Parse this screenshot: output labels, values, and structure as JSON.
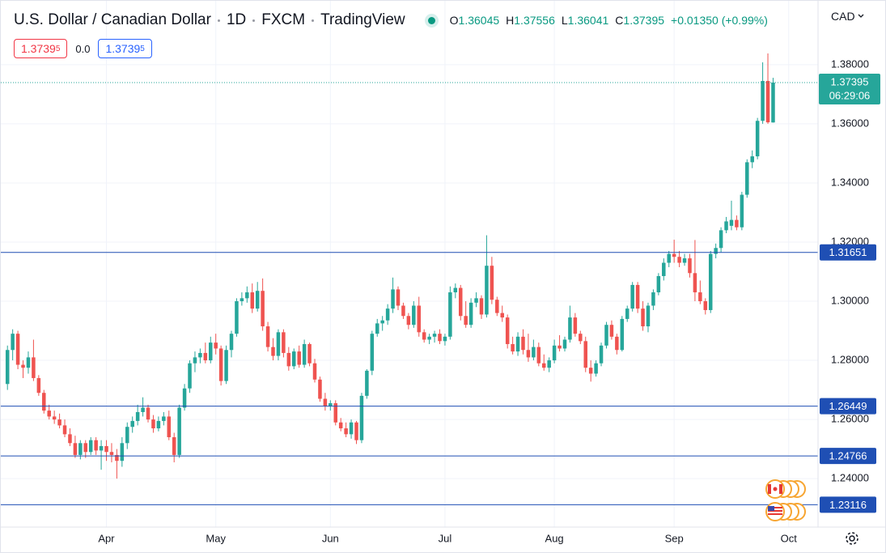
{
  "header": {
    "symbol": "U.S. Dollar / Canadian Dollar",
    "interval": "1D",
    "exchange": "FXCM",
    "source": "TradingView",
    "ohlc_keys": [
      "O",
      "H",
      "L",
      "C"
    ],
    "change": "+0.01350 (+0.99%)",
    "sell": {
      "price": "1.3739",
      "pip": "5"
    },
    "spread": "0.0",
    "buy": {
      "price": "1.3739",
      "pip": "5"
    },
    "currency": "CAD"
  },
  "chart_data": {
    "type": "candlestick",
    "up_color": "#26a69a",
    "down_color": "#ef5350",
    "grid": true,
    "ylim": [
      1.2236,
      1.4016
    ],
    "yticks": [
      {
        "value": 1.24,
        "label": "1.24000"
      },
      {
        "value": 1.26,
        "label": "1.26000"
      },
      {
        "value": 1.28,
        "label": "1.28000"
      },
      {
        "value": 1.3,
        "label": "1.30000"
      },
      {
        "value": 1.32,
        "label": "1.32000"
      },
      {
        "value": 1.34,
        "label": "1.34000"
      },
      {
        "value": 1.36,
        "label": "1.36000"
      },
      {
        "value": 1.38,
        "label": "1.38000"
      }
    ],
    "hlines": [
      1.31651,
      1.26449,
      1.24766,
      1.23116
    ],
    "hline_color": "#1f4fb4",
    "last_price": 1.37395,
    "countdown": "06:29:06",
    "categories": [
      null,
      null,
      null,
      null,
      null,
      null,
      null,
      null,
      null,
      null,
      null,
      null,
      null,
      null,
      null,
      null,
      null,
      null,
      null,
      "Apr",
      null,
      null,
      null,
      null,
      null,
      null,
      null,
      null,
      null,
      null,
      null,
      null,
      null,
      null,
      null,
      null,
      null,
      null,
      null,
      null,
      "May",
      null,
      null,
      null,
      null,
      null,
      null,
      null,
      null,
      null,
      null,
      null,
      null,
      null,
      null,
      null,
      null,
      null,
      null,
      null,
      null,
      null,
      "Jun",
      null,
      null,
      null,
      null,
      null,
      null,
      null,
      null,
      null,
      null,
      null,
      null,
      null,
      null,
      null,
      null,
      null,
      null,
      null,
      null,
      null,
      "Jul",
      null,
      null,
      null,
      null,
      null,
      null,
      null,
      null,
      null,
      null,
      null,
      null,
      null,
      null,
      null,
      null,
      null,
      null,
      null,
      null,
      "Aug",
      null,
      null,
      null,
      null,
      null,
      null,
      null,
      null,
      null,
      null,
      null,
      null,
      null,
      null,
      null,
      null,
      null,
      null,
      null,
      null,
      null,
      null,
      "Sep",
      null,
      null,
      null,
      null,
      null,
      null,
      null,
      null,
      null,
      null,
      null,
      null,
      null,
      null,
      null,
      null,
      null,
      null,
      null,
      null,
      null,
      "Oct"
    ],
    "ohlc": [
      [
        1.272,
        1.285,
        1.27,
        1.2835
      ],
      [
        1.2835,
        1.2905,
        1.28,
        1.289
      ],
      [
        1.289,
        1.29,
        1.277,
        1.2785
      ],
      [
        1.2785,
        1.28,
        1.274,
        1.2775
      ],
      [
        1.2775,
        1.283,
        1.2755,
        1.281
      ],
      [
        1.281,
        1.287,
        1.273,
        1.274
      ],
      [
        1.274,
        1.275,
        1.268,
        1.269
      ],
      [
        1.269,
        1.27,
        1.262,
        1.263
      ],
      [
        1.263,
        1.265,
        1.26,
        1.261
      ],
      [
        1.261,
        1.263,
        1.2585,
        1.26
      ],
      [
        1.26,
        1.262,
        1.257,
        1.258
      ],
      [
        1.258,
        1.26,
        1.254,
        1.255
      ],
      [
        1.255,
        1.257,
        1.251,
        1.252
      ],
      [
        1.252,
        1.2545,
        1.247,
        1.248
      ],
      [
        1.248,
        1.253,
        1.2465,
        1.252
      ],
      [
        1.252,
        1.253,
        1.247,
        1.249
      ],
      [
        1.249,
        1.254,
        1.248,
        1.253
      ],
      [
        1.253,
        1.254,
        1.248,
        1.2495
      ],
      [
        1.2495,
        1.253,
        1.243,
        1.251
      ],
      [
        1.251,
        1.253,
        1.246,
        1.249
      ],
      [
        1.249,
        1.252,
        1.2455,
        1.248
      ],
      [
        1.248,
        1.25,
        1.24,
        1.246
      ],
      [
        1.246,
        1.254,
        1.244,
        1.252
      ],
      [
        1.252,
        1.259,
        1.25,
        1.2575
      ],
      [
        1.2575,
        1.261,
        1.2555,
        1.2595
      ],
      [
        1.2595,
        1.265,
        1.258,
        1.2625
      ],
      [
        1.2625,
        1.2675,
        1.261,
        1.264
      ],
      [
        1.264,
        1.265,
        1.259,
        1.26
      ],
      [
        1.26,
        1.2615,
        1.2555,
        1.257
      ],
      [
        1.257,
        1.261,
        1.256,
        1.2595
      ],
      [
        1.2595,
        1.2625,
        1.258,
        1.261
      ],
      [
        1.261,
        1.263,
        1.253,
        1.254
      ],
      [
        1.254,
        1.2555,
        1.2455,
        1.248
      ],
      [
        1.248,
        1.265,
        1.247,
        1.264
      ],
      [
        1.264,
        1.272,
        1.263,
        1.2705
      ],
      [
        1.2705,
        1.28,
        1.269,
        1.279
      ],
      [
        1.279,
        1.283,
        1.276,
        1.281
      ],
      [
        1.281,
        1.284,
        1.279,
        1.2825
      ],
      [
        1.2825,
        1.286,
        1.279,
        1.28
      ],
      [
        1.28,
        1.288,
        1.279,
        1.286
      ],
      [
        1.286,
        1.289,
        1.282,
        1.284
      ],
      [
        1.284,
        1.285,
        1.2715,
        1.273
      ],
      [
        1.273,
        1.285,
        1.272,
        1.2835
      ],
      [
        1.2835,
        1.29,
        1.281,
        1.289
      ],
      [
        1.289,
        1.301,
        1.288,
        1.3
      ],
      [
        1.3,
        1.303,
        1.2985,
        1.301
      ],
      [
        1.301,
        1.305,
        1.2995,
        1.303
      ],
      [
        1.303,
        1.306,
        1.296,
        1.2975
      ],
      [
        1.2975,
        1.3065,
        1.2965,
        1.3035
      ],
      [
        1.3035,
        1.3077,
        1.29,
        1.2915
      ],
      [
        1.2915,
        1.293,
        1.283,
        1.2845
      ],
      [
        1.2845,
        1.2875,
        1.28,
        1.2815
      ],
      [
        1.2815,
        1.2905,
        1.28,
        1.2895
      ],
      [
        1.2895,
        1.2905,
        1.281,
        1.2825
      ],
      [
        1.2825,
        1.2845,
        1.2765,
        1.278
      ],
      [
        1.278,
        1.284,
        1.277,
        1.283
      ],
      [
        1.283,
        1.285,
        1.2775,
        1.2785
      ],
      [
        1.2785,
        1.287,
        1.2775,
        1.2855
      ],
      [
        1.2855,
        1.286,
        1.278,
        1.279
      ],
      [
        1.279,
        1.2805,
        1.2725,
        1.2735
      ],
      [
        1.2735,
        1.2745,
        1.266,
        1.267
      ],
      [
        1.267,
        1.269,
        1.263,
        1.2645
      ],
      [
        1.2645,
        1.2665,
        1.263,
        1.2655
      ],
      [
        1.2655,
        1.2665,
        1.258,
        1.259
      ],
      [
        1.259,
        1.2605,
        1.256,
        1.257
      ],
      [
        1.257,
        1.259,
        1.254,
        1.255
      ],
      [
        1.255,
        1.26,
        1.2535,
        1.259
      ],
      [
        1.259,
        1.2595,
        1.2517,
        1.253
      ],
      [
        1.253,
        1.269,
        1.252,
        1.268
      ],
      [
        1.268,
        1.277,
        1.267,
        1.2765
      ],
      [
        1.2765,
        1.29,
        1.275,
        1.289
      ],
      [
        1.289,
        1.294,
        1.288,
        1.2925
      ],
      [
        1.2925,
        1.295,
        1.29,
        1.2935
      ],
      [
        1.2935,
        1.299,
        1.292,
        1.2975
      ],
      [
        1.2975,
        1.308,
        1.296,
        1.304
      ],
      [
        1.304,
        1.305,
        1.297,
        1.2985
      ],
      [
        1.2985,
        1.2995,
        1.294,
        1.295
      ],
      [
        1.295,
        1.296,
        1.2905,
        1.292
      ],
      [
        1.292,
        1.3,
        1.291,
        1.2985
      ],
      [
        1.2985,
        1.3015,
        1.288,
        1.2895
      ],
      [
        1.2895,
        1.2905,
        1.286,
        1.287
      ],
      [
        1.287,
        1.289,
        1.2855,
        1.288
      ],
      [
        1.288,
        1.29,
        1.286,
        1.289
      ],
      [
        1.289,
        1.2905,
        1.2855,
        1.2865
      ],
      [
        1.2865,
        1.289,
        1.285,
        1.288
      ],
      [
        1.288,
        1.305,
        1.287,
        1.303
      ],
      [
        1.303,
        1.306,
        1.301,
        1.3045
      ],
      [
        1.3045,
        1.3055,
        1.2935,
        1.295
      ],
      [
        1.295,
        1.3,
        1.291,
        1.292
      ],
      [
        1.292,
        1.301,
        1.291,
        1.2995
      ],
      [
        1.2995,
        1.303,
        1.298,
        1.301
      ],
      [
        1.301,
        1.302,
        1.294,
        1.2955
      ],
      [
        1.2955,
        1.3223,
        1.2945,
        1.312
      ],
      [
        1.312,
        1.315,
        1.299,
        1.3005
      ],
      [
        1.3005,
        1.3015,
        1.295,
        1.296
      ],
      [
        1.296,
        1.2985,
        1.293,
        1.2945
      ],
      [
        1.2945,
        1.2955,
        1.284,
        1.2855
      ],
      [
        1.2855,
        1.288,
        1.282,
        1.283
      ],
      [
        1.283,
        1.2895,
        1.2815,
        1.288
      ],
      [
        1.288,
        1.2905,
        1.282,
        1.2835
      ],
      [
        1.2835,
        1.289,
        1.2795,
        1.281
      ],
      [
        1.281,
        1.287,
        1.28,
        1.2845
      ],
      [
        1.2845,
        1.286,
        1.278,
        1.279
      ],
      [
        1.279,
        1.282,
        1.2765,
        1.2775
      ],
      [
        1.2775,
        1.281,
        1.276,
        1.28
      ],
      [
        1.28,
        1.287,
        1.279,
        1.285
      ],
      [
        1.285,
        1.2885,
        1.283,
        1.284
      ],
      [
        1.284,
        1.288,
        1.283,
        1.287
      ],
      [
        1.287,
        1.2985,
        1.286,
        1.2945
      ],
      [
        1.2945,
        1.296,
        1.288,
        1.289
      ],
      [
        1.289,
        1.29,
        1.2855,
        1.2865
      ],
      [
        1.2865,
        1.288,
        1.276,
        1.2775
      ],
      [
        1.2775,
        1.28,
        1.2728,
        1.2755
      ],
      [
        1.2755,
        1.28,
        1.2745,
        1.279
      ],
      [
        1.279,
        1.286,
        1.278,
        1.285
      ],
      [
        1.285,
        1.293,
        1.284,
        1.292
      ],
      [
        1.292,
        1.2935,
        1.287,
        1.288
      ],
      [
        1.288,
        1.289,
        1.282,
        1.2835
      ],
      [
        1.2835,
        1.295,
        1.283,
        1.294
      ],
      [
        1.294,
        1.2985,
        1.293,
        1.2975
      ],
      [
        1.2975,
        1.3065,
        1.2965,
        1.3055
      ],
      [
        1.3055,
        1.3065,
        1.296,
        1.2975
      ],
      [
        1.2975,
        1.3,
        1.29,
        1.2915
      ],
      [
        1.2915,
        1.2995,
        1.2895,
        1.2985
      ],
      [
        1.2985,
        1.304,
        1.297,
        1.303
      ],
      [
        1.303,
        1.3095,
        1.302,
        1.3085
      ],
      [
        1.3085,
        1.3145,
        1.307,
        1.313
      ],
      [
        1.313,
        1.317,
        1.3115,
        1.316
      ],
      [
        1.316,
        1.3208,
        1.313,
        1.315
      ],
      [
        1.315,
        1.317,
        1.3115,
        1.313
      ],
      [
        1.313,
        1.316,
        1.312,
        1.3145
      ],
      [
        1.3145,
        1.316,
        1.308,
        1.3095
      ],
      [
        1.3095,
        1.3207,
        1.3,
        1.303
      ],
      [
        1.303,
        1.307,
        1.299,
        1.3
      ],
      [
        1.3,
        1.301,
        1.2955,
        1.297
      ],
      [
        1.297,
        1.317,
        1.296,
        1.316
      ],
      [
        1.316,
        1.3195,
        1.3145,
        1.318
      ],
      [
        1.318,
        1.325,
        1.3165,
        1.324
      ],
      [
        1.324,
        1.3285,
        1.323,
        1.327
      ],
      [
        1.3255,
        1.334,
        1.324,
        1.3275
      ],
      [
        1.3275,
        1.329,
        1.324,
        1.325
      ],
      [
        1.325,
        1.337,
        1.324,
        1.336
      ],
      [
        1.336,
        1.348,
        1.335,
        1.347
      ],
      [
        1.347,
        1.351,
        1.345,
        1.349
      ],
      [
        1.349,
        1.362,
        1.348,
        1.361
      ],
      [
        1.361,
        1.3808,
        1.36,
        1.3745
      ],
      [
        1.3745,
        1.3838,
        1.36,
        1.3605
      ],
      [
        1.36045,
        1.37556,
        1.36041,
        1.37395
      ],
      null,
      null,
      null
    ]
  }
}
